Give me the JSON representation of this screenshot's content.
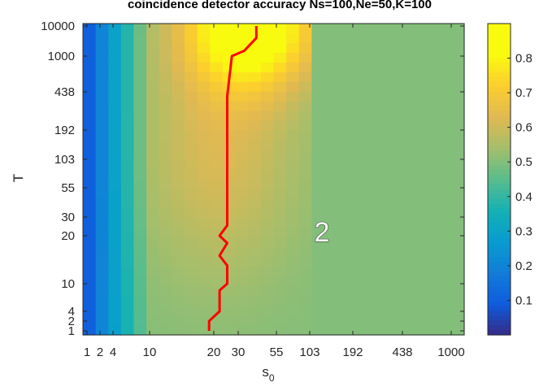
{
  "chart_data": {
    "type": "heatmap",
    "title": "coincidence detector accuracy Ns=100,Ne=50,K=100",
    "xlabel": "s",
    "xlabel_sub": "0",
    "ylabel": "T",
    "x_ticks": [
      "1",
      "2",
      "4",
      "10",
      "20",
      "30",
      "55",
      "103",
      "192",
      "438",
      "1000"
    ],
    "y_ticks": [
      "1",
      "2",
      "4",
      "10",
      "20",
      "30",
      "55",
      "103",
      "192",
      "438",
      "1000",
      "10000"
    ],
    "colorbar": {
      "colormap": "parula",
      "range": [
        0.0,
        0.9
      ],
      "ticks": [
        "0.1",
        "0.2",
        "0.3",
        "0.4",
        "0.5",
        "0.6",
        "0.7",
        "0.8"
      ]
    },
    "plateau_value": 0.5,
    "peak_value": 0.9,
    "boundary_line": {
      "color": "#ff0000",
      "description_points_s0": [
        19,
        19,
        22,
        22,
        25,
        25,
        22,
        25,
        22,
        25,
        25,
        25,
        27,
        33,
        40,
        40
      ],
      "description_points_T": [
        1,
        2,
        4,
        8,
        10,
        13,
        15,
        18,
        20,
        25,
        100,
        400,
        1000,
        1500,
        4000,
        10000
      ]
    },
    "annotation": "2"
  }
}
